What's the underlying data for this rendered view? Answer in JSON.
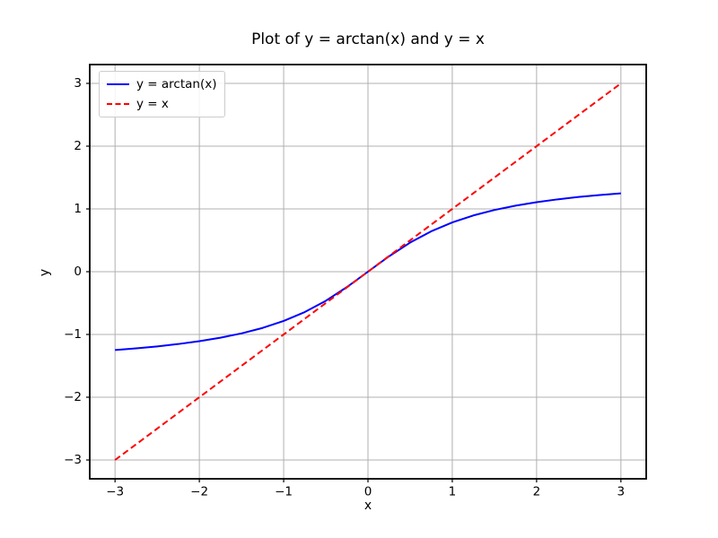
{
  "chart_data": {
    "type": "line",
    "title": "Plot of y = arctan(x) and y = x",
    "xlabel": "x",
    "ylabel": "y",
    "xlim": [
      -3.3,
      3.3
    ],
    "ylim": [
      -3.3,
      3.3
    ],
    "xticks": [
      -3,
      -2,
      -1,
      0,
      1,
      2,
      3
    ],
    "yticks": [
      -3,
      -2,
      -1,
      0,
      1,
      2,
      3
    ],
    "xtick_labels": [
      "−3",
      "−2",
      "−1",
      "0",
      "1",
      "2",
      "3"
    ],
    "ytick_labels": [
      "−3",
      "−2",
      "−1",
      "0",
      "1",
      "2",
      "3"
    ],
    "grid": true,
    "grid_color": "#b0b0b0",
    "background_color": "#ffffff",
    "spine_color": "#000000",
    "legend": {
      "position": "upper left"
    },
    "series": [
      {
        "name": "y = arctan(x)",
        "color": "#0000ff",
        "line_style": "solid",
        "line_width": 2,
        "x": [
          -3.0,
          -2.75,
          -2.5,
          -2.25,
          -2.0,
          -1.75,
          -1.5,
          -1.25,
          -1.0,
          -0.75,
          -0.5,
          -0.25,
          0.0,
          0.25,
          0.5,
          0.75,
          1.0,
          1.25,
          1.5,
          1.75,
          2.0,
          2.25,
          2.5,
          2.75,
          3.0
        ],
        "y": [
          -1.249,
          -1.222,
          -1.1903,
          -1.1526,
          -1.1071,
          -1.0517,
          -0.9828,
          -0.8961,
          -0.7854,
          -0.6435,
          -0.4636,
          -0.245,
          0.0,
          0.245,
          0.4636,
          0.6435,
          0.7854,
          0.8961,
          0.9828,
          1.0517,
          1.1071,
          1.1526,
          1.1903,
          1.222,
          1.249
        ]
      },
      {
        "name": "y = x",
        "color": "#ff0000",
        "line_style": "dashed",
        "line_width": 2,
        "x": [
          -3.0,
          3.0
        ],
        "y": [
          -3.0,
          3.0
        ]
      }
    ]
  }
}
